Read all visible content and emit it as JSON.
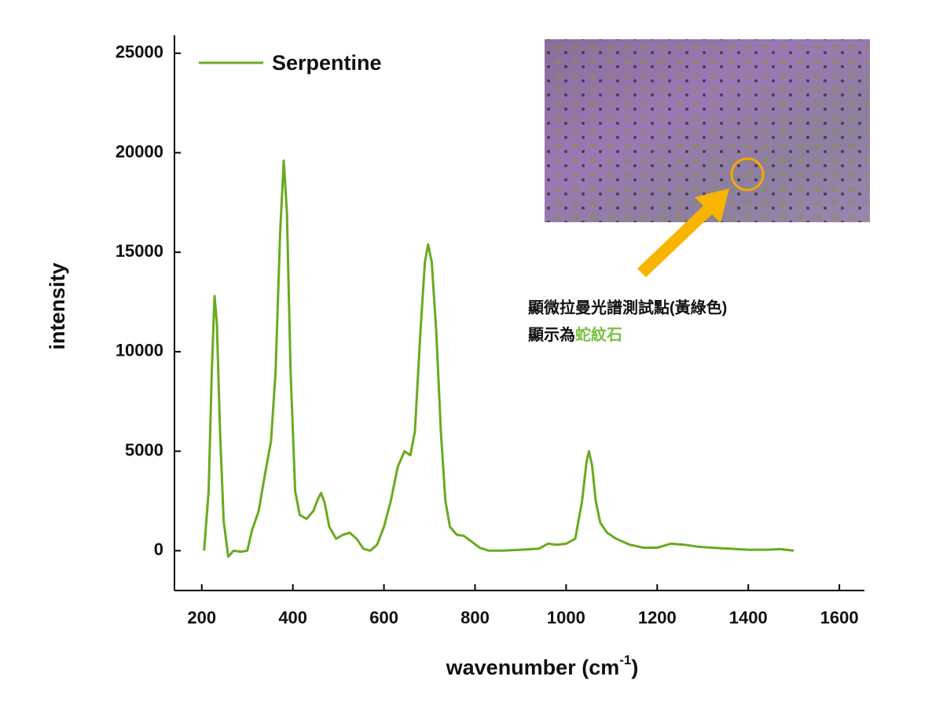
{
  "chart_data": {
    "type": "line",
    "xlabel": {
      "text": "wavenumber (cm",
      "sup": "-1",
      "tail": ")"
    },
    "ylabel": "intensity",
    "x": [
      205,
      215,
      222,
      228,
      233,
      240,
      248,
      258,
      270,
      285,
      300,
      310,
      325,
      340,
      352,
      362,
      372,
      380,
      387,
      395,
      405,
      415,
      430,
      445,
      455,
      462,
      470,
      480,
      495,
      510,
      525,
      540,
      555,
      570,
      585,
      600,
      615,
      630,
      645,
      658,
      668,
      680,
      690,
      697,
      705,
      715,
      725,
      735,
      745,
      760,
      775,
      790,
      810,
      830,
      860,
      900,
      940,
      960,
      980,
      1000,
      1020,
      1035,
      1045,
      1050,
      1057,
      1065,
      1075,
      1090,
      1110,
      1140,
      1170,
      1200,
      1230,
      1260,
      1290,
      1320,
      1360,
      1400,
      1440,
      1470,
      1500
    ],
    "series": [
      {
        "name": "Serpentine",
        "color": "#6aaa1e",
        "values": [
          0,
          3000,
          9000,
          12800,
          11500,
          6000,
          1500,
          -300,
          0,
          -50,
          0,
          1000,
          2000,
          4000,
          5500,
          9000,
          16000,
          19600,
          17000,
          9000,
          3000,
          1800,
          1600,
          2000,
          2600,
          2900,
          2400,
          1200,
          600,
          800,
          900,
          600,
          100,
          0,
          300,
          1200,
          2500,
          4200,
          5000,
          4800,
          6000,
          11000,
          14500,
          15400,
          14500,
          11000,
          6000,
          2500,
          1200,
          800,
          750,
          500,
          150,
          0,
          0,
          50,
          100,
          350,
          300,
          350,
          600,
          2500,
          4500,
          5000,
          4300,
          2500,
          1400,
          900,
          600,
          300,
          150,
          150,
          350,
          300,
          200,
          150,
          100,
          50,
          50,
          80,
          0
        ]
      }
    ],
    "xlim": [
      140,
      1655
    ],
    "ylim": [
      -2000,
      25900
    ],
    "xticks": [
      200,
      400,
      600,
      800,
      1000,
      1200,
      1400,
      1600
    ],
    "yticks": [
      0,
      5000,
      10000,
      15000,
      20000,
      25000
    ],
    "legend": "top-left",
    "annotation": {
      "line1": "顯微拉曼光譜測試點(黃綠色)",
      "line2": "顯示為",
      "highlight": "蛇紋石",
      "highlight_color": "#7ac143"
    }
  }
}
